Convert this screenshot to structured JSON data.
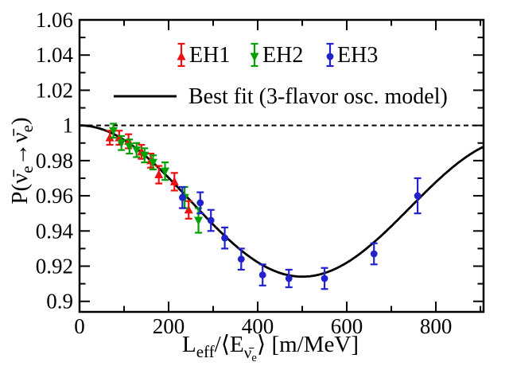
{
  "legend": {
    "position": "top-inside",
    "entries": [
      {
        "label": "EH1",
        "marker": "triangle-up",
        "color": "#ee1111"
      },
      {
        "label": "EH2",
        "marker": "triangle-down",
        "color": "#00a000"
      },
      {
        "label": "EH3",
        "marker": "circle",
        "color": "#2222cc"
      }
    ],
    "best_fit_label": "Best fit (3-flavor osc. model)"
  },
  "titles": {
    "x": {
      "t1": "L",
      "s1": "eff",
      "t2": "/⟨E",
      "s2": "ν̄",
      "s3": "e",
      "t3": "⟩ [m/MeV]"
    },
    "y": {
      "t1": "P(",
      "n1": "ν̄",
      "e1": "e",
      "a": "→",
      "n2": "ν̄",
      "e2": "e",
      "t2": ")"
    }
  },
  "chart_data": {
    "type": "scatter",
    "title": "",
    "xlabel": "L_eff / <E_nubar_e>  [m/MeV]",
    "ylabel": "P(nubar_e -> nubar_e)",
    "xlim": [
      0,
      907
    ],
    "ylim": [
      0.894,
      1.06
    ],
    "grid": false,
    "x_major_ticks": [
      0,
      200,
      400,
      600,
      800
    ],
    "x_tick_labels": [
      "0",
      "200",
      "400",
      "600",
      "800"
    ],
    "x_minor_ticks": [
      100,
      300,
      500,
      700,
      900
    ],
    "y_major_ticks": [
      0.9,
      0.92,
      0.94,
      0.96,
      0.98,
      1.0,
      1.02,
      1.04,
      1.06
    ],
    "y_tick_labels": [
      "0.9",
      "0.92",
      "0.94",
      "0.96",
      "0.98",
      "1",
      "1.02",
      "1.04",
      "1.06"
    ],
    "y_minor_step": 0.01,
    "reference_line_y": 1.0,
    "series": [
      {
        "name": "EH1",
        "marker": "triangle-up",
        "color": "#ee1111",
        "points": [
          {
            "x": 68,
            "y": 0.993,
            "ey": 0.004
          },
          {
            "x": 89,
            "y": 0.993,
            "ey": 0.004
          },
          {
            "x": 110,
            "y": 0.991,
            "ey": 0.004
          },
          {
            "x": 139,
            "y": 0.985,
            "ey": 0.004
          },
          {
            "x": 160,
            "y": 0.98,
            "ey": 0.004
          },
          {
            "x": 178,
            "y": 0.972,
            "ey": 0.005
          },
          {
            "x": 213,
            "y": 0.968,
            "ey": 0.005
          },
          {
            "x": 245,
            "y": 0.952,
            "ey": 0.005
          }
        ]
      },
      {
        "name": "EH2",
        "marker": "triangle-down",
        "color": "#00a000",
        "points": [
          {
            "x": 76,
            "y": 0.997,
            "ey": 0.004
          },
          {
            "x": 94,
            "y": 0.99,
            "ey": 0.004
          },
          {
            "x": 112,
            "y": 0.988,
            "ey": 0.004
          },
          {
            "x": 128,
            "y": 0.986,
            "ey": 0.004
          },
          {
            "x": 146,
            "y": 0.983,
            "ey": 0.004
          },
          {
            "x": 165,
            "y": 0.979,
            "ey": 0.004
          },
          {
            "x": 192,
            "y": 0.974,
            "ey": 0.005
          },
          {
            "x": 236,
            "y": 0.959,
            "ey": 0.006
          },
          {
            "x": 267,
            "y": 0.946,
            "ey": 0.007
          }
        ]
      },
      {
        "name": "EH3",
        "marker": "circle",
        "color": "#2222cc",
        "points": [
          {
            "x": 231,
            "y": 0.959,
            "ey": 0.006
          },
          {
            "x": 271,
            "y": 0.956,
            "ey": 0.006
          },
          {
            "x": 295,
            "y": 0.946,
            "ey": 0.006
          },
          {
            "x": 326,
            "y": 0.936,
            "ey": 0.006
          },
          {
            "x": 363,
            "y": 0.924,
            "ey": 0.006
          },
          {
            "x": 411,
            "y": 0.915,
            "ey": 0.006
          },
          {
            "x": 470,
            "y": 0.913,
            "ey": 0.005
          },
          {
            "x": 550,
            "y": 0.913,
            "ey": 0.006
          },
          {
            "x": 661,
            "y": 0.927,
            "ey": 0.006
          },
          {
            "x": 759,
            "y": 0.96,
            "ey": 0.01
          }
        ]
      }
    ],
    "best_fit_curve": {
      "label": "Best fit (3-flavor osc. model)",
      "color": "#000000",
      "A13": 0.0841,
      "k13": 0.0031675,
      "A12": 0.826,
      "k12": 9.54e-05
    }
  }
}
